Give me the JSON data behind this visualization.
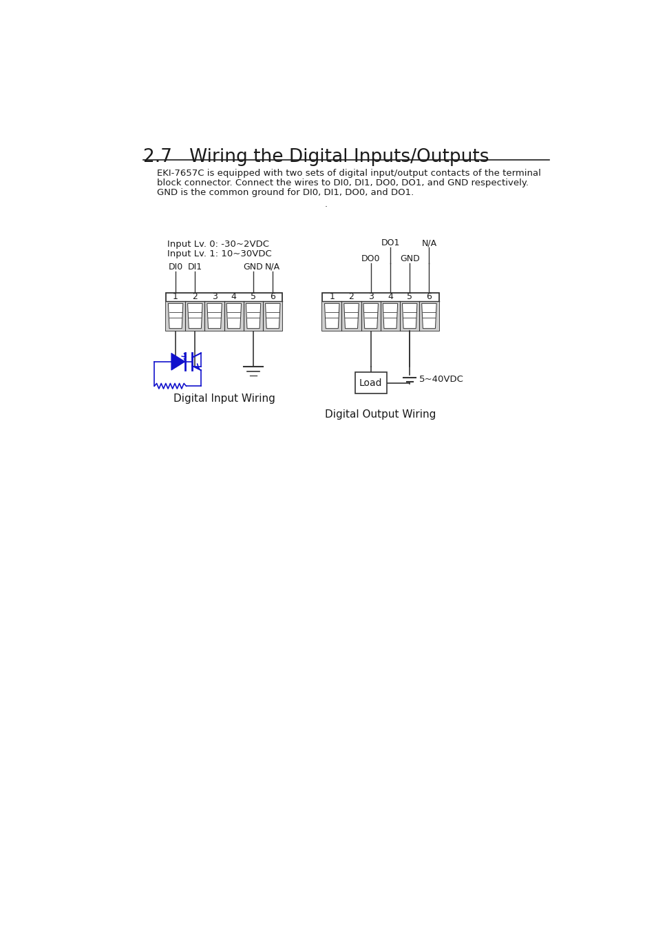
{
  "title": "2.7   Wiring the Digital Inputs/Outputs",
  "body_text_line1": "EKI-7657C is equipped with two sets of digital input/output contacts of the terminal",
  "body_text_line2": "block connector. Connect the wires to DI0, DI1, DO0, DO1, and GND respectively.",
  "body_text_line3": "GND is the common ground for DI0, DI1, DO0, and DO1.",
  "input_lv0": "Input Lv. 0: -30~2VDC",
  "input_lv1": "Input Lv. 1: 10~30VDC",
  "connector_numbers": [
    "1",
    "2",
    "3",
    "4",
    "5",
    "6"
  ],
  "caption_input": "Digital Input Wiring",
  "caption_output": "Digital Output Wiring",
  "voltage_label": "5~40VDC",
  "load_label": "Load",
  "bg_color": "#ffffff",
  "text_color": "#1a1a1a",
  "blue_color": "#1111cc",
  "dark_color": "#333333"
}
